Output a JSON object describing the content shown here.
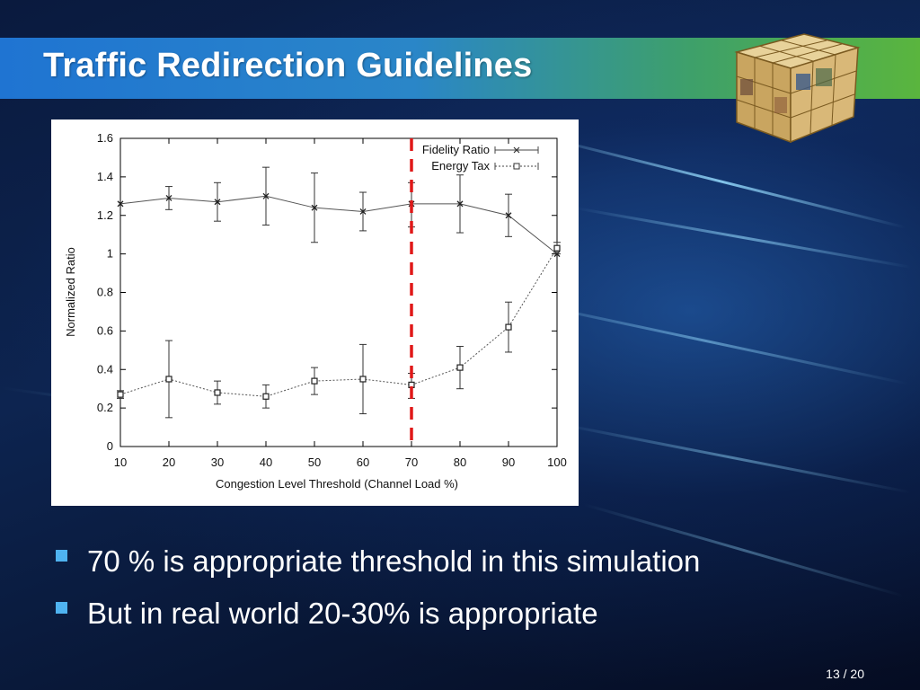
{
  "slide": {
    "title": "Traffic Redirection Guidelines",
    "page_number": "13 / 20"
  },
  "bullets": [
    "70 % is appropriate threshold in this simulation",
    "But in real world 20-30% is appropriate"
  ],
  "colors": {
    "title_bar_start": "#1f74d2",
    "title_bar_end": "#5ab53e",
    "bullet": "#4fb3f0",
    "threshold_line": "#e01818"
  },
  "chart_data": {
    "type": "line",
    "title": "",
    "xlabel": "Congestion Level Threshold (Channel Load %)",
    "ylabel": "Normalized Ratio",
    "x": [
      10,
      20,
      30,
      40,
      50,
      60,
      70,
      80,
      90,
      100
    ],
    "xlim": [
      10,
      100
    ],
    "ylim": [
      0,
      1.6
    ],
    "x_ticks": [
      "10",
      "20",
      "30",
      "40",
      "50",
      "60",
      "70",
      "80",
      "90",
      "100"
    ],
    "y_ticks": [
      "0",
      "0.2",
      "0.4",
      "0.6",
      "0.8",
      "1",
      "1.2",
      "1.4",
      "1.6"
    ],
    "legend_position": "top-right",
    "series": [
      {
        "name": "Fidelity Ratio",
        "marker": "x",
        "line": "solid",
        "values": [
          1.26,
          1.29,
          1.27,
          1.3,
          1.24,
          1.22,
          1.26,
          1.26,
          1.2,
          1.0
        ],
        "err_low": [
          1.26,
          1.23,
          1.17,
          1.15,
          1.06,
          1.12,
          1.14,
          1.11,
          1.09,
          1.0
        ],
        "err_high": [
          1.26,
          1.35,
          1.37,
          1.45,
          1.42,
          1.32,
          1.37,
          1.41,
          1.31,
          1.0
        ]
      },
      {
        "name": "Energy Tax",
        "marker": "square",
        "line": "dotted",
        "values": [
          0.27,
          0.35,
          0.28,
          0.26,
          0.34,
          0.35,
          0.32,
          0.41,
          0.62,
          1.03
        ],
        "err_low": [
          0.25,
          0.15,
          0.22,
          0.2,
          0.27,
          0.17,
          0.25,
          0.3,
          0.49,
          1.0
        ],
        "err_high": [
          0.29,
          0.55,
          0.34,
          0.32,
          0.41,
          0.53,
          0.38,
          0.52,
          0.75,
          1.06
        ]
      }
    ],
    "threshold_x": 70
  }
}
